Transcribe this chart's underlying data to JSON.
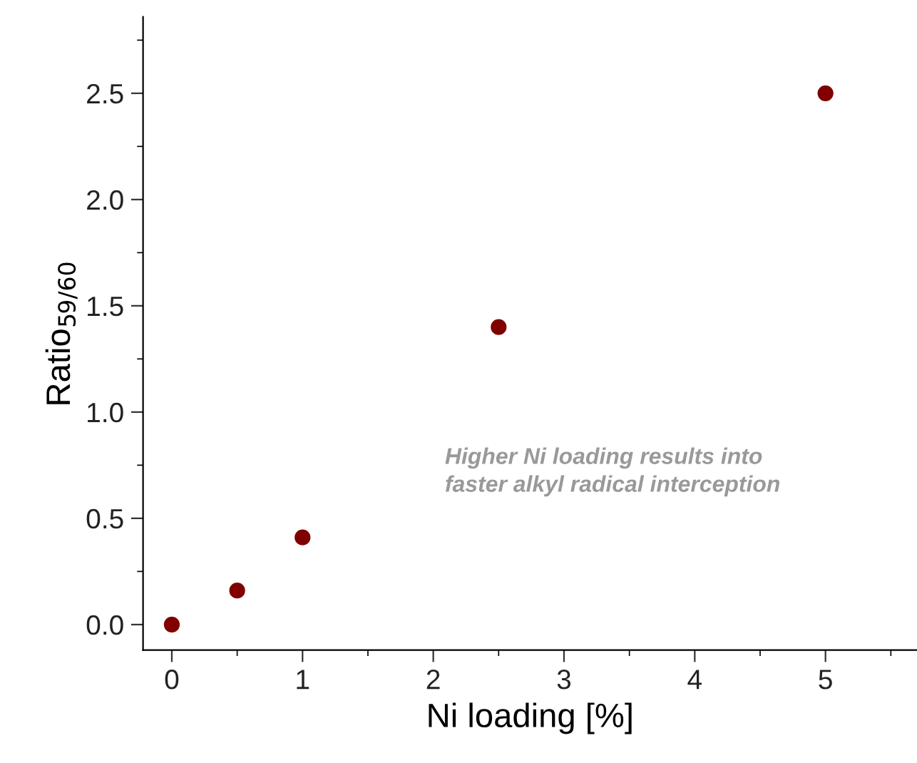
{
  "chart_data": {
    "type": "scatter",
    "xlabel": "Ni loading [%]",
    "ylabel": "Ratio$_{59/60}$",
    "x": [
      0,
      0.5,
      1,
      2.5,
      5
    ],
    "series": [
      {
        "color": "#800000",
        "values": [
          0,
          0.16,
          0.41,
          1.4,
          2.5
        ]
      }
    ],
    "xlim": [
      -0.22,
      5.7
    ],
    "xticks": [
      0,
      1,
      2,
      3,
      4,
      5
    ],
    "ylim": [
      -0.12,
      2.86
    ],
    "yticks": [
      {
        "value": 0,
        "label": "0.0"
      },
      {
        "value": 0.5,
        "label": "0.5"
      },
      {
        "value": 1,
        "label": "1.0"
      },
      {
        "value": 1.5,
        "label": "1.5"
      },
      {
        "value": 2,
        "label": "2.0"
      },
      {
        "value": 2.5,
        "label": "2.5"
      }
    ],
    "marker": "circle",
    "grid": false,
    "legend": false,
    "annotations": [
      "Higher Ni loading results into\nfaster alkyl radical interception"
    ]
  }
}
